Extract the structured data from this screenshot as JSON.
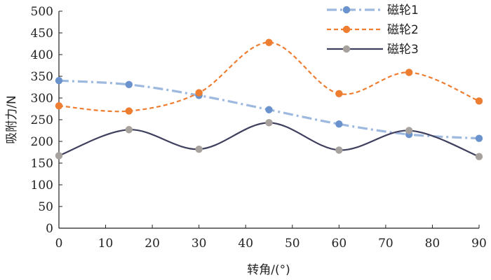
{
  "chart_data": {
    "type": "line",
    "title": "",
    "xlabel": "转角/(°)",
    "ylabel": "吸附力/N",
    "x": [
      0,
      15,
      30,
      45,
      60,
      75,
      90
    ],
    "xlim": [
      0,
      90
    ],
    "ylim": [
      0,
      500
    ],
    "xticks": [
      0,
      10,
      20,
      30,
      40,
      50,
      60,
      70,
      80,
      90
    ],
    "yticks": [
      0,
      50,
      100,
      150,
      200,
      250,
      300,
      350,
      400,
      450,
      500
    ],
    "grid": false,
    "legend_position": "top-right",
    "series": [
      {
        "name": "磁轮1",
        "values": [
          340,
          331,
          306,
          273,
          240,
          216,
          207
        ],
        "line_color": "#9db9df",
        "marker_color": "#6a93cd",
        "line_style": "dash-dot",
        "curve": "smooth"
      },
      {
        "name": "磁轮2",
        "values": [
          282,
          270,
          312,
          428,
          310,
          359,
          293
        ],
        "line_color": "#ed7d31",
        "marker_color": "#ed7d31",
        "line_style": "dashed",
        "curve": "smooth"
      },
      {
        "name": "磁轮3",
        "values": [
          167,
          227,
          182,
          243,
          180,
          225,
          165
        ],
        "line_color": "#3f3f5e",
        "marker_color": "#a8a29e",
        "line_style": "solid",
        "curve": "smooth"
      }
    ]
  }
}
